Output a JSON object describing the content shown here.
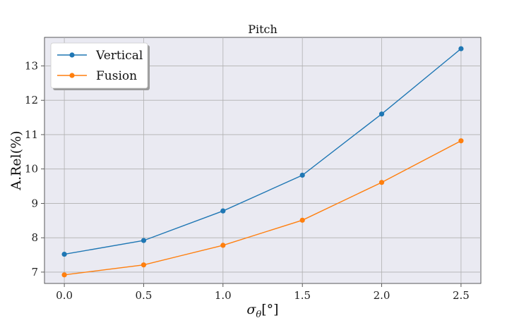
{
  "chart_data": {
    "type": "line",
    "title": "Pitch",
    "xlabel": "σθ[°]",
    "ylabel": "A.Rel(%)",
    "x": [
      0.0,
      0.5,
      1.0,
      1.5,
      2.0,
      2.5
    ],
    "x_tick_labels": [
      "0.0",
      "0.5",
      "1.0",
      "1.5",
      "2.0",
      "2.5"
    ],
    "y_ticks": [
      7,
      8,
      9,
      10,
      11,
      12,
      13
    ],
    "xlim": [
      -0.125,
      2.625
    ],
    "ylim": [
      6.67,
      13.83
    ],
    "grid": true,
    "legend_position": "top-left",
    "series": [
      {
        "name": "Vertical",
        "color": "#1f77b4",
        "values": [
          7.52,
          7.92,
          8.78,
          9.82,
          11.6,
          13.5
        ]
      },
      {
        "name": "Fusion",
        "color": "#ff7f0e",
        "values": [
          6.92,
          7.21,
          7.78,
          8.51,
          9.61,
          10.82
        ]
      }
    ]
  }
}
